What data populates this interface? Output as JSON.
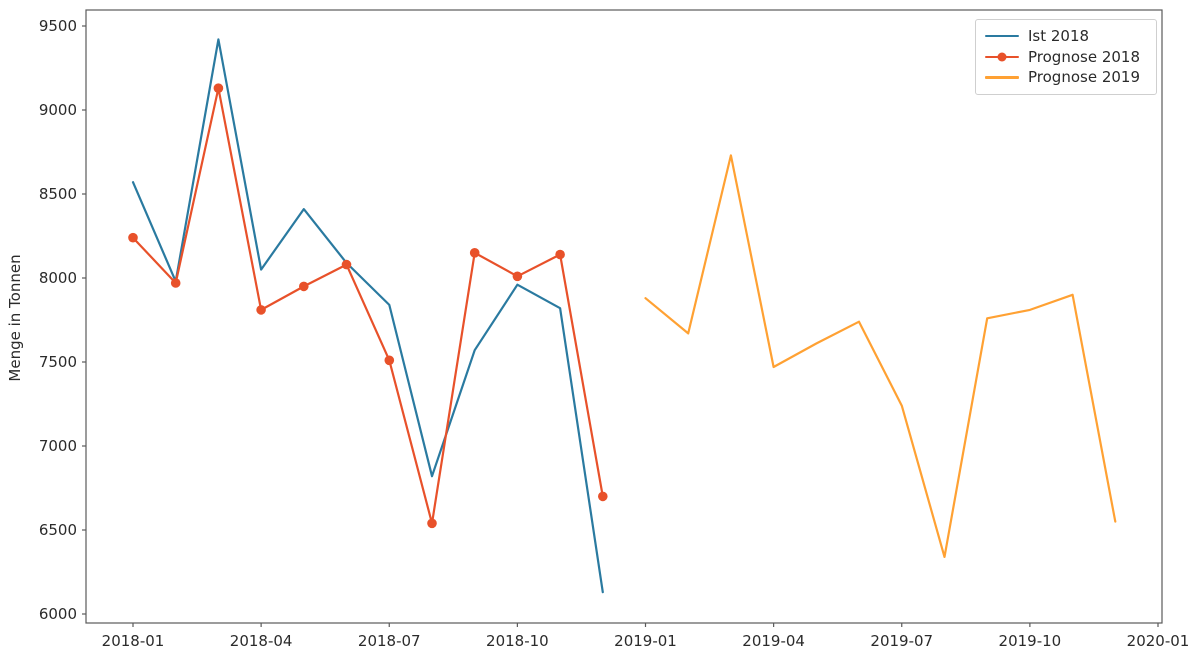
{
  "figure": {
    "background": "#ffffff",
    "spine_color": "#5a5a5a",
    "tick_label_color": "#2b2b2b"
  },
  "chart_data": {
    "type": "line",
    "title": "",
    "xlabel": "",
    "ylabel": "Menge in Tonnen",
    "grid": false,
    "legend_position": "upper right",
    "ylim": [
      5950,
      9595
    ],
    "y_ticks": [
      6000,
      6500,
      7000,
      7500,
      8000,
      8500,
      9000,
      9500
    ],
    "x_tick_labels": [
      "2018-01",
      "2018-04",
      "2018-07",
      "2018-10",
      "2019-01",
      "2019-04",
      "2019-07",
      "2019-10",
      "2020-01"
    ],
    "series": [
      {
        "name": "Ist 2018",
        "color": "#2a7aa0",
        "marker": "none",
        "months": [
          "2018-01",
          "2018-02",
          "2018-03",
          "2018-04",
          "2018-05",
          "2018-06",
          "2018-07",
          "2018-08",
          "2018-09",
          "2018-10",
          "2018-11",
          "2018-12"
        ],
        "values": [
          8570,
          7980,
          9420,
          8050,
          8410,
          8090,
          7840,
          6820,
          7570,
          7960,
          7820,
          6130
        ]
      },
      {
        "name": "Prognose 2018",
        "color": "#e8512a",
        "marker": "circle",
        "months": [
          "2018-01",
          "2018-02",
          "2018-03",
          "2018-04",
          "2018-05",
          "2018-06",
          "2018-07",
          "2018-08",
          "2018-09",
          "2018-10",
          "2018-11",
          "2018-12"
        ],
        "values": [
          8240,
          7970,
          9130,
          7810,
          7950,
          8080,
          7510,
          6540,
          8150,
          8010,
          8140,
          6700
        ]
      },
      {
        "name": "Prognose 2019",
        "color": "#ffa133",
        "marker": "none",
        "months": [
          "2019-01",
          "2019-02",
          "2019-03",
          "2019-04",
          "2019-05",
          "2019-06",
          "2019-07",
          "2019-08",
          "2019-09",
          "2019-10",
          "2019-11",
          "2019-12"
        ],
        "values": [
          7880,
          7670,
          8730,
          7470,
          7610,
          7740,
          7240,
          6340,
          7760,
          7810,
          7900,
          6550
        ]
      }
    ]
  }
}
